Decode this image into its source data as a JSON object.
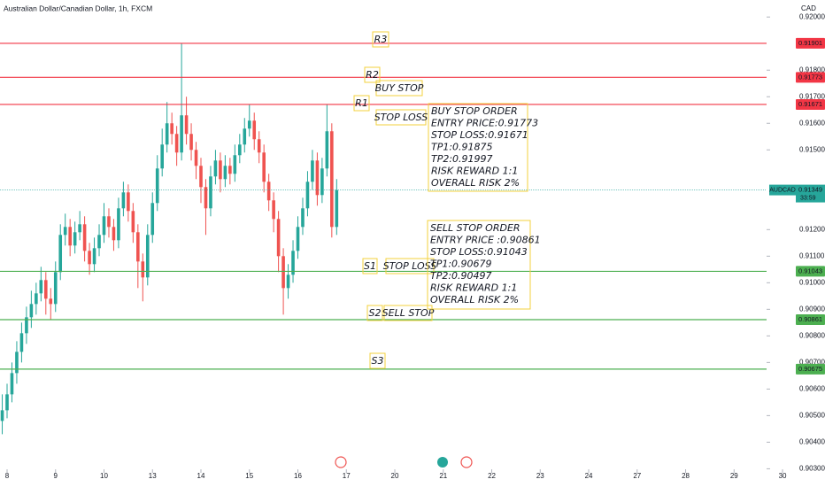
{
  "chart_data": {
    "type": "candlestick",
    "title": "Australian Dollar/Canadian Dollar, 1h, FXCM",
    "currency": "CAD",
    "up_color": "#26a69a",
    "down_color": "#ef5350",
    "xlim": [
      -0.146,
      16.876
    ],
    "ylim": [
      0.92064,
      0.90298
    ],
    "xticks": [
      {
        "value": 0,
        "label": "8"
      },
      {
        "value": 1,
        "label": "9"
      },
      {
        "value": 2,
        "label": "10"
      },
      {
        "value": 3,
        "label": "13"
      },
      {
        "value": 4,
        "label": "14"
      },
      {
        "value": 5,
        "label": "15"
      },
      {
        "value": 6,
        "label": "16"
      },
      {
        "value": 7,
        "label": "17"
      },
      {
        "value": 8,
        "label": "20"
      },
      {
        "value": 9,
        "label": "21"
      },
      {
        "value": 10,
        "label": "22"
      },
      {
        "value": 11,
        "label": "23"
      },
      {
        "value": 12,
        "label": "24"
      },
      {
        "value": 13,
        "label": "27"
      },
      {
        "value": 14,
        "label": "28"
      },
      {
        "value": 15,
        "label": "29"
      },
      {
        "value": 16,
        "label": "30"
      }
    ],
    "yticks": [
      {
        "value": 0.92,
        "label": "0.92000"
      },
      {
        "value": 0.918,
        "label": "0.91800"
      },
      {
        "value": 0.917,
        "label": "0.91700"
      },
      {
        "value": 0.916,
        "label": "0.91600"
      },
      {
        "value": 0.915,
        "label": "0.91500"
      },
      {
        "value": 0.912,
        "label": "0.91200"
      },
      {
        "value": 0.911,
        "label": "0.91100"
      },
      {
        "value": 0.91,
        "label": "0.91000"
      },
      {
        "value": 0.909,
        "label": "0.90900"
      },
      {
        "value": 0.908,
        "label": "0.90800"
      },
      {
        "value": 0.907,
        "label": "0.90700"
      },
      {
        "value": 0.906,
        "label": "0.90600"
      },
      {
        "value": 0.905,
        "label": "0.90500"
      },
      {
        "value": 0.904,
        "label": "0.90400"
      },
      {
        "value": 0.903,
        "label": "0.90300"
      }
    ],
    "x": [
      -0.1,
      0,
      0.1,
      0.2,
      0.3,
      0.4,
      0.5,
      0.6,
      0.7,
      0.8,
      0.9,
      1,
      1.1,
      1.2,
      1.3,
      1.4,
      1.5,
      1.6,
      1.7,
      1.8,
      1.9,
      2,
      2.1,
      2.2,
      2.3,
      2.4,
      2.5,
      2.6,
      2.7,
      2.8,
      2.9,
      3,
      3.1,
      3.2,
      3.3,
      3.4,
      3.5,
      3.6,
      3.7,
      3.8,
      3.9,
      4,
      4.1,
      4.2,
      4.3,
      4.4,
      4.5,
      4.6,
      4.7,
      4.8,
      4.9,
      5,
      5.1,
      5.2,
      5.3,
      5.4,
      5.5,
      5.6,
      5.7,
      5.8,
      5.9,
      6,
      6.1,
      6.2,
      6.3,
      6.4,
      6.5,
      6.6,
      6.7,
      6.8
    ],
    "ohlc": [
      [
        0.9048,
        0.9058,
        0.9043,
        0.9052
      ],
      [
        0.9052,
        0.9062,
        0.9049,
        0.9058
      ],
      [
        0.9058,
        0.907,
        0.9055,
        0.9066
      ],
      [
        0.9066,
        0.9078,
        0.9062,
        0.9074
      ],
      [
        0.9074,
        0.9085,
        0.907,
        0.9081
      ],
      [
        0.9081,
        0.9091,
        0.9077,
        0.9087
      ],
      [
        0.9087,
        0.9097,
        0.9083,
        0.9092
      ],
      [
        0.9092,
        0.91,
        0.9088,
        0.9096
      ],
      [
        0.9096,
        0.9106,
        0.9093,
        0.9101
      ],
      [
        0.9101,
        0.9104,
        0.9088,
        0.9094
      ],
      [
        0.9094,
        0.9098,
        0.9086,
        0.9092
      ],
      [
        0.9092,
        0.9108,
        0.9089,
        0.9104
      ],
      [
        0.9104,
        0.9122,
        0.9101,
        0.9118
      ],
      [
        0.9118,
        0.9126,
        0.9114,
        0.9121
      ],
      [
        0.9121,
        0.9124,
        0.911,
        0.9114
      ],
      [
        0.9114,
        0.9123,
        0.9111,
        0.9119
      ],
      [
        0.9119,
        0.9127,
        0.9116,
        0.9122
      ],
      [
        0.9122,
        0.9125,
        0.9108,
        0.9112
      ],
      [
        0.9112,
        0.9115,
        0.9103,
        0.9107
      ],
      [
        0.9107,
        0.9117,
        0.9104,
        0.9113
      ],
      [
        0.9113,
        0.9122,
        0.911,
        0.9118
      ],
      [
        0.9118,
        0.913,
        0.9115,
        0.9125
      ],
      [
        0.9125,
        0.9128,
        0.9117,
        0.9121
      ],
      [
        0.9121,
        0.9124,
        0.9112,
        0.9116
      ],
      [
        0.9116,
        0.9132,
        0.9113,
        0.9128
      ],
      [
        0.9128,
        0.9138,
        0.9125,
        0.9134
      ],
      [
        0.9134,
        0.9137,
        0.9123,
        0.9127
      ],
      [
        0.9127,
        0.913,
        0.9115,
        0.9119
      ],
      [
        0.9119,
        0.9122,
        0.9098,
        0.9108
      ],
      [
        0.9108,
        0.9111,
        0.9093,
        0.9102
      ],
      [
        0.9102,
        0.9122,
        0.9099,
        0.9118
      ],
      [
        0.9118,
        0.9134,
        0.9115,
        0.913
      ],
      [
        0.913,
        0.9148,
        0.9127,
        0.9143
      ],
      [
        0.9143,
        0.9158,
        0.914,
        0.9152
      ],
      [
        0.9152,
        0.9168,
        0.9149,
        0.916
      ],
      [
        0.916,
        0.9164,
        0.9152,
        0.9156
      ],
      [
        0.9156,
        0.9159,
        0.9144,
        0.9149
      ],
      [
        0.9149,
        0.919,
        0.9146,
        0.9163
      ],
      [
        0.9163,
        0.917,
        0.9152,
        0.9156
      ],
      [
        0.9156,
        0.916,
        0.9146,
        0.915
      ],
      [
        0.915,
        0.9153,
        0.9139,
        0.9144
      ],
      [
        0.9144,
        0.9147,
        0.913,
        0.9136
      ],
      [
        0.9136,
        0.9139,
        0.9118,
        0.9128
      ],
      [
        0.9128,
        0.9144,
        0.9125,
        0.914
      ],
      [
        0.914,
        0.915,
        0.9137,
        0.9146
      ],
      [
        0.9146,
        0.9149,
        0.9134,
        0.9139
      ],
      [
        0.9139,
        0.9148,
        0.9136,
        0.9144
      ],
      [
        0.9144,
        0.9147,
        0.9137,
        0.9141
      ],
      [
        0.9141,
        0.9152,
        0.9138,
        0.9148
      ],
      [
        0.9148,
        0.9156,
        0.9145,
        0.9152
      ],
      [
        0.9152,
        0.9162,
        0.9149,
        0.9158
      ],
      [
        0.9158,
        0.9167,
        0.9155,
        0.9161
      ],
      [
        0.9161,
        0.9164,
        0.915,
        0.9154
      ],
      [
        0.9154,
        0.9157,
        0.9145,
        0.9149
      ],
      [
        0.9149,
        0.9152,
        0.9134,
        0.9138
      ],
      [
        0.9138,
        0.9141,
        0.9127,
        0.9131
      ],
      [
        0.9131,
        0.9134,
        0.9119,
        0.9124
      ],
      [
        0.9124,
        0.9127,
        0.9104,
        0.911
      ],
      [
        0.911,
        0.9113,
        0.9088,
        0.9098
      ],
      [
        0.9098,
        0.9107,
        0.9094,
        0.9103
      ],
      [
        0.9103,
        0.9116,
        0.91,
        0.9112
      ],
      [
        0.9112,
        0.9125,
        0.9109,
        0.9121
      ],
      [
        0.9121,
        0.9132,
        0.9118,
        0.9128
      ],
      [
        0.9128,
        0.9142,
        0.9125,
        0.9138
      ],
      [
        0.9138,
        0.915,
        0.9135,
        0.9146
      ],
      [
        0.9146,
        0.9149,
        0.9129,
        0.9133
      ],
      [
        0.9133,
        0.9147,
        0.913,
        0.9143
      ],
      [
        0.9143,
        0.9167,
        0.914,
        0.9157
      ],
      [
        0.9157,
        0.916,
        0.9117,
        0.9121
      ],
      [
        0.9121,
        0.9139,
        0.9118,
        0.91349
      ]
    ],
    "levels": [
      {
        "value": 0.91901,
        "label": "0.91901",
        "color": "#f23645"
      },
      {
        "value": 0.91773,
        "label": "0.91773",
        "color": "#f23645"
      },
      {
        "value": 0.91671,
        "label": "0.91671",
        "color": "#f23645"
      },
      {
        "value": 0.91043,
        "label": "0.91043",
        "color": "#4caf50"
      },
      {
        "value": 0.90861,
        "label": "0.90861",
        "color": "#4caf50"
      },
      {
        "value": 0.90675,
        "label": "0.90675",
        "color": "#4caf50"
      }
    ],
    "current_price": {
      "symbol": "AUDCAD",
      "value": 0.91349,
      "label": "0.91349",
      "countdown": "33:59",
      "color": "#26a69a"
    },
    "annotations": [
      {
        "text": "R3",
        "color": "#f23645"
      },
      {
        "text": "R2",
        "color": "#f23645"
      },
      {
        "text": "BUY STOP",
        "color": "#2e9b3e"
      },
      {
        "text": "R1",
        "color": "#f23645"
      },
      {
        "text": "STOP LOSS",
        "color": "#2e9b3e"
      },
      {
        "text": "S1",
        "color": "#2e9b3e"
      },
      {
        "text": "STOP LOSS",
        "color": "#f23645"
      },
      {
        "text": "S2",
        "color": "#2e9b3e"
      },
      {
        "text": "SELL STOP",
        "color": "#f23645"
      },
      {
        "text": "S3",
        "color": "#2e9b3e"
      }
    ],
    "orders": [
      {
        "color": "#2e9b3e",
        "lines": [
          "BUY STOP ORDER",
          "ENTRY PRICE:0.91773",
          "STOP LOSS:0.91671",
          "TP1:0.91875",
          "TP2:0.91997",
          "RISK REWARD 1:1",
          "OVERALL RISK 2%"
        ]
      },
      {
        "color": "#f23645",
        "lines": [
          "SELL STOP ORDER",
          "ENTRY PRICE :0.90861",
          "STOP LOSS:0.91043",
          "TP1:0.90679",
          "TP2:0.90497",
          "RISK REWARD 1:1",
          "OVERALL RISK 2%"
        ]
      }
    ]
  }
}
